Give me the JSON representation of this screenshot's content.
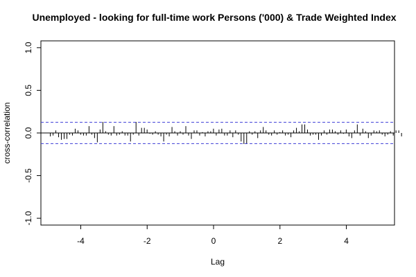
{
  "chart_data": {
    "type": "bar",
    "title": "Unemployed - looking for full-time work Persons ('000) & Trade Weighted Index",
    "xlabel": "Lag",
    "ylabel": "cross-correlation",
    "xlim": [
      -5.2,
      5.45
    ],
    "ylim": [
      -1.08,
      1.08
    ],
    "x_ticks": [
      -4,
      -2,
      0,
      2,
      4
    ],
    "x_tick_labels": [
      "-4",
      "-2",
      "0",
      "2",
      "4"
    ],
    "y_ticks": [
      -1.0,
      -0.5,
      0.0,
      0.5,
      1.0
    ],
    "y_tick_labels": [
      "-1.0",
      "-0.5",
      "0.0",
      "0.5",
      "1.0"
    ],
    "confidence_band": 0.125,
    "lag_start": -4.917,
    "lag_step": 0.0833,
    "values": [
      -0.04,
      -0.03,
      0.03,
      -0.05,
      -0.08,
      -0.07,
      -0.07,
      -0.02,
      -0.03,
      0.05,
      0.03,
      -0.02,
      -0.03,
      -0.03,
      0.08,
      -0.02,
      -0.06,
      -0.11,
      0.04,
      0.13,
      0.02,
      -0.02,
      -0.03,
      0.08,
      -0.03,
      -0.02,
      0.02,
      -0.03,
      -0.03,
      -0.1,
      -0.02,
      0.13,
      -0.03,
      0.06,
      0.06,
      0.04,
      -0.01,
      -0.02,
      0.02,
      -0.02,
      -0.04,
      -0.1,
      -0.02,
      -0.04,
      0.07,
      0.02,
      -0.03,
      0.02,
      -0.02,
      0.08,
      -0.03,
      -0.07,
      0.03,
      0.03,
      -0.03,
      0.01,
      -0.04,
      0.02,
      0.02,
      0.05,
      -0.03,
      0.04,
      0.05,
      -0.03,
      -0.03,
      0.03,
      -0.05,
      0.03,
      -0.02,
      -0.1,
      -0.13,
      -0.13,
      0.02,
      -0.02,
      0.02,
      -0.06,
      0.03,
      0.07,
      0.03,
      -0.02,
      -0.03,
      0.03,
      -0.02,
      0.01,
      0.03,
      -0.03,
      -0.02,
      -0.05,
      0.03,
      0.06,
      0.02,
      0.1,
      0.1,
      0.04,
      -0.03,
      -0.02,
      -0.02,
      -0.08,
      -0.03,
      0.03,
      -0.02,
      0.04,
      0.04,
      0.02,
      -0.02,
      0.03,
      -0.01,
      0.04,
      -0.04,
      -0.06,
      0.03,
      0.1,
      -0.03,
      0.05,
      0.02,
      -0.06,
      -0.03,
      0.03,
      0.02,
      0.03,
      -0.02,
      -0.04,
      -0.02,
      0.02,
      -0.03,
      0.03,
      0.03,
      -0.04
    ],
    "colors": {
      "bar": "#000000",
      "band": "#3b3bd6",
      "zero_line": "#000000",
      "frame": "#000000"
    },
    "grid": false,
    "legend": "none"
  }
}
